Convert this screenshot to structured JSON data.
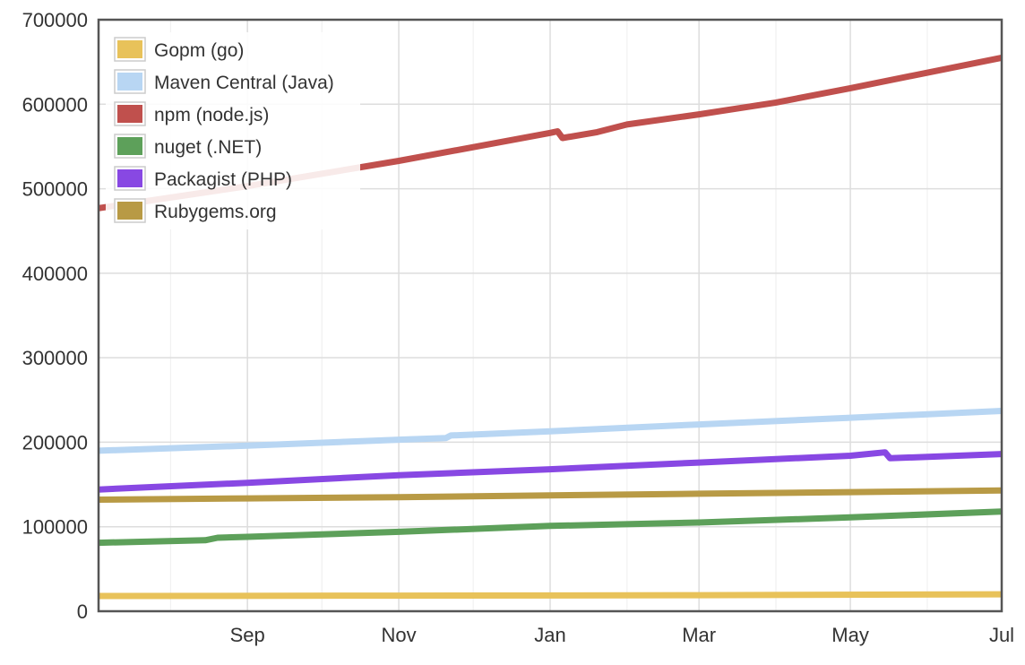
{
  "chart_data": {
    "type": "line",
    "title": "",
    "xlabel": "",
    "ylabel": "",
    "grid": true,
    "legend_position": "top-left",
    "x_ticks": [
      "Sep",
      "Nov",
      "Jan",
      "Mar",
      "May",
      "Jul"
    ],
    "x_tick_dates": [
      "2015-09-01",
      "2015-11-01",
      "2016-01-01",
      "2016-03-01",
      "2016-05-01",
      "2016-07-01"
    ],
    "x_range": [
      "2015-07-03",
      "2016-07-01"
    ],
    "ylim": [
      0,
      700000
    ],
    "y_ticks": [
      0,
      100000,
      200000,
      300000,
      400000,
      500000,
      600000,
      700000
    ],
    "series": [
      {
        "name": "Gopm (go)",
        "color": "#e8c25a",
        "points": [
          [
            "2015-07-03",
            18000
          ],
          [
            "2015-11-01",
            18500
          ],
          [
            "2016-03-01",
            19000
          ],
          [
            "2016-07-01",
            20000
          ]
        ]
      },
      {
        "name": "Maven Central (Java)",
        "color": "#b8d6f3",
        "points": [
          [
            "2015-07-03",
            190000
          ],
          [
            "2015-09-01",
            196000
          ],
          [
            "2015-11-01",
            203000
          ],
          [
            "2015-11-20",
            205000
          ],
          [
            "2015-11-22",
            208000
          ],
          [
            "2016-01-01",
            213000
          ],
          [
            "2016-03-01",
            221000
          ],
          [
            "2016-05-01",
            229000
          ],
          [
            "2016-07-01",
            237000
          ]
        ]
      },
      {
        "name": "npm (node.js)",
        "color": "#c0504d",
        "points": [
          [
            "2015-07-03",
            477000
          ],
          [
            "2015-09-01",
            503000
          ],
          [
            "2015-11-01",
            533000
          ],
          [
            "2016-01-01",
            566000
          ],
          [
            "2016-01-04",
            568000
          ],
          [
            "2016-01-06",
            560000
          ],
          [
            "2016-01-20",
            567000
          ],
          [
            "2016-02-01",
            576000
          ],
          [
            "2016-03-01",
            588000
          ],
          [
            "2016-04-01",
            602000
          ],
          [
            "2016-05-01",
            619000
          ],
          [
            "2016-07-01",
            655000
          ]
        ]
      },
      {
        "name": "nuget (.NET)",
        "color": "#5da05a",
        "points": [
          [
            "2015-07-03",
            81000
          ],
          [
            "2015-08-15",
            84000
          ],
          [
            "2015-08-20",
            87000
          ],
          [
            "2015-09-01",
            88000
          ],
          [
            "2015-11-01",
            94000
          ],
          [
            "2016-01-01",
            101000
          ],
          [
            "2016-03-01",
            105000
          ],
          [
            "2016-05-01",
            111000
          ],
          [
            "2016-07-01",
            118000
          ]
        ]
      },
      {
        "name": "Packagist (PHP)",
        "color": "#8848e3",
        "points": [
          [
            "2015-07-03",
            144000
          ],
          [
            "2015-09-01",
            152000
          ],
          [
            "2015-11-01",
            161000
          ],
          [
            "2016-01-01",
            168000
          ],
          [
            "2016-03-01",
            176000
          ],
          [
            "2016-05-01",
            184000
          ],
          [
            "2016-05-15",
            188000
          ],
          [
            "2016-05-17",
            181000
          ],
          [
            "2016-07-01",
            186000
          ]
        ]
      },
      {
        "name": "Rubygems.org",
        "color": "#b89a45",
        "points": [
          [
            "2015-07-03",
            132000
          ],
          [
            "2015-09-01",
            133500
          ],
          [
            "2015-11-01",
            135000
          ],
          [
            "2016-01-01",
            137000
          ],
          [
            "2016-03-01",
            139000
          ],
          [
            "2016-05-01",
            141000
          ],
          [
            "2016-07-01",
            143000
          ]
        ]
      }
    ]
  }
}
